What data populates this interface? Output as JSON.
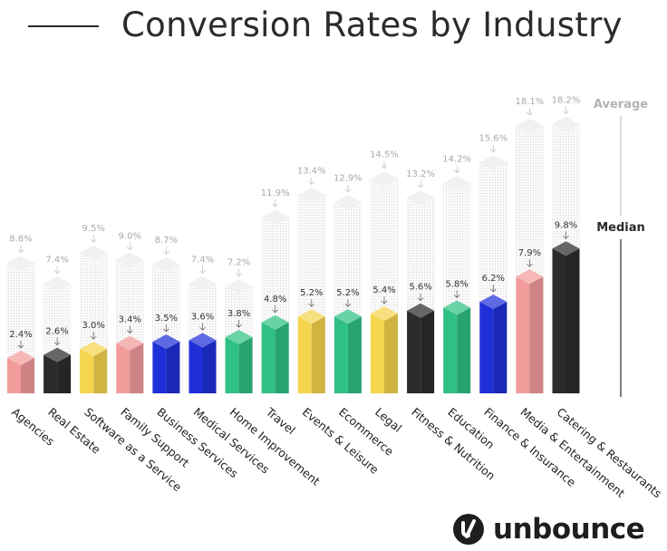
{
  "header": {
    "title": "Conversion Rates by Industry"
  },
  "chart_data": {
    "type": "bar",
    "title": "Conversion Rates by Industry",
    "xlabel": "",
    "ylabel": "",
    "ylim": [
      0,
      20
    ],
    "legend": {
      "average_label": "Average",
      "median_label": "Median",
      "placement": "right"
    },
    "categories": [
      "Agencies",
      "Real Estate",
      "Software as a Service",
      "Family Support",
      "Business Services",
      "Medical Services",
      "Home Improvement",
      "Travel",
      "Events & Leisure",
      "Ecommerce",
      "Legal",
      "Fitness & Nutrition",
      "Education",
      "Finance & Insurance",
      "Media & Entertainment",
      "Catering & Restaurants"
    ],
    "series": [
      {
        "name": "Median",
        "values": [
          2.4,
          2.6,
          3.0,
          3.4,
          3.5,
          3.6,
          3.8,
          4.8,
          5.2,
          5.2,
          5.4,
          5.6,
          5.8,
          6.2,
          7.9,
          9.8
        ],
        "labels": [
          "2.4%",
          "2.6%",
          "3.0%",
          "3.4%",
          "3.5%",
          "3.6%",
          "3.8%",
          "4.8%",
          "5.2%",
          "5.2%",
          "5.4%",
          "5.6%",
          "5.8%",
          "6.2%",
          "7.9%",
          "9.8%"
        ]
      },
      {
        "name": "Average",
        "values": [
          8.8,
          7.4,
          9.5,
          9.0,
          8.7,
          7.4,
          7.2,
          11.9,
          13.4,
          12.9,
          14.5,
          13.2,
          14.2,
          15.6,
          18.1,
          18.2
        ],
        "labels": [
          "8.8%",
          "7.4%",
          "9.5%",
          "9.0%",
          "8.7%",
          "7.4%",
          "7.2%",
          "11.9%",
          "13.4%",
          "12.9%",
          "14.5%",
          "13.2%",
          "14.2%",
          "15.6%",
          "18.1%",
          "18.2%"
        ]
      }
    ],
    "bar_colors": [
      "#f29b9b",
      "#2b2b2b",
      "#f5d44e",
      "#f29b9b",
      "#1f2fd8",
      "#1f2fd8",
      "#2fc083",
      "#2fc083",
      "#f5d44e",
      "#2fc083",
      "#f5d44e",
      "#2b2b2b",
      "#2fc083",
      "#1f2fd8",
      "#f29b9b",
      "#2b2b2b"
    ]
  },
  "branding": {
    "logo_text": "unbounce"
  }
}
